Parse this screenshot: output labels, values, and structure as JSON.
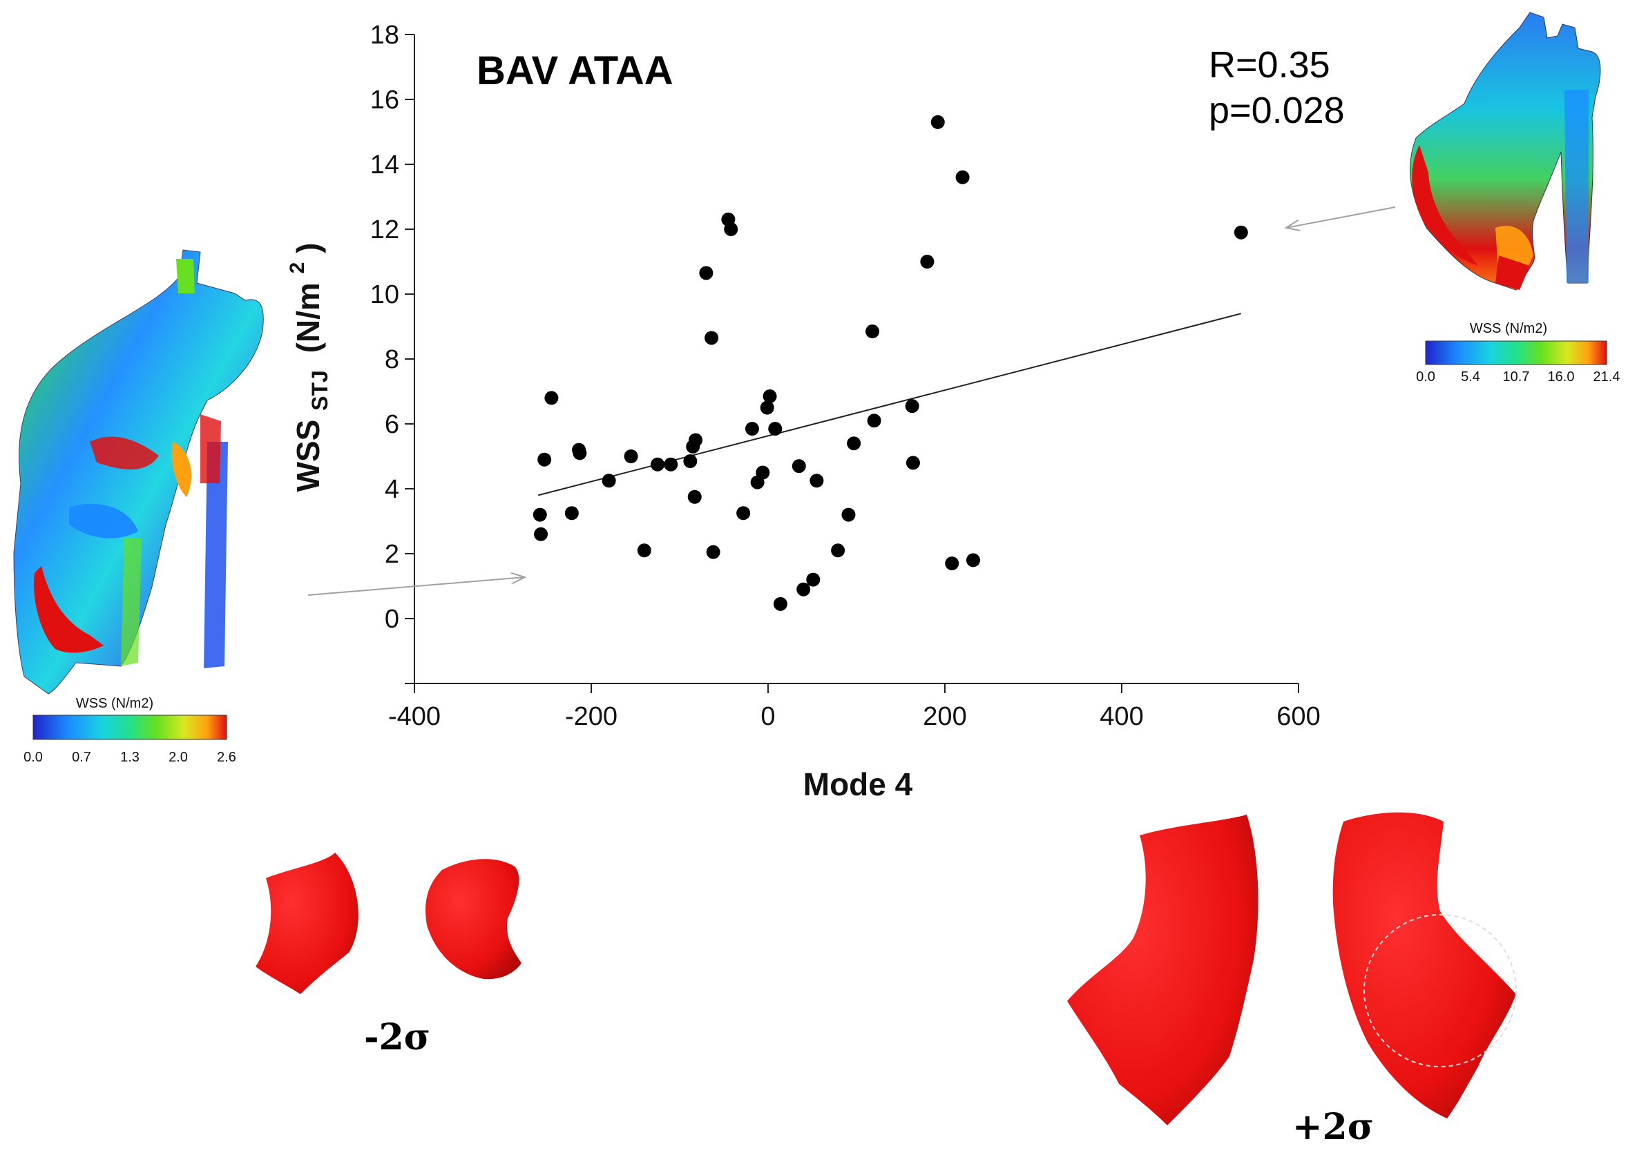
{
  "chart_data": {
    "type": "scatter",
    "title": "BAV ATAA",
    "xlabel": "Mode 4",
    "ylabel_main": "WSS",
    "ylabel_sub": "STJ",
    "ylabel_unit": "(N/m",
    "ylabel_sup": "2",
    "ylabel_close": ")",
    "xlim": [
      -400,
      600
    ],
    "ylim": [
      -2,
      18
    ],
    "x_ticks": [
      -400,
      -200,
      0,
      200,
      400,
      600
    ],
    "x_tick_labels": [
      "-400",
      "-200",
      "0",
      "200",
      "400",
      "600"
    ],
    "y_ticks": [
      0,
      2,
      4,
      6,
      8,
      10,
      12,
      14,
      16,
      18
    ],
    "y_tick_labels": [
      "0",
      "2",
      "4",
      "6",
      "8",
      "10",
      "12",
      "14",
      "16",
      "18"
    ],
    "stats": {
      "r": "R=0.35",
      "p": "p=0.028"
    },
    "regression": {
      "x": [
        -260,
        535
      ],
      "y": [
        3.8,
        9.4
      ]
    },
    "points": [
      {
        "x": -258,
        "y": 3.2
      },
      {
        "x": -257,
        "y": 2.6
      },
      {
        "x": -253,
        "y": 4.9
      },
      {
        "x": -245,
        "y": 6.8
      },
      {
        "x": -222,
        "y": 3.25
      },
      {
        "x": -214,
        "y": 5.2
      },
      {
        "x": -213,
        "y": 5.1
      },
      {
        "x": -180,
        "y": 4.25
      },
      {
        "x": -155,
        "y": 5.0
      },
      {
        "x": -140,
        "y": 2.1
      },
      {
        "x": -125,
        "y": 4.75
      },
      {
        "x": -110,
        "y": 4.75
      },
      {
        "x": -88,
        "y": 4.85
      },
      {
        "x": -85,
        "y": 5.3
      },
      {
        "x": -83,
        "y": 3.75
      },
      {
        "x": -82,
        "y": 5.5
      },
      {
        "x": -70,
        "y": 10.65
      },
      {
        "x": -64,
        "y": 8.65
      },
      {
        "x": -62,
        "y": 2.05
      },
      {
        "x": -45,
        "y": 12.3
      },
      {
        "x": -42,
        "y": 12.0
      },
      {
        "x": -28,
        "y": 3.25
      },
      {
        "x": -18,
        "y": 5.85
      },
      {
        "x": -12,
        "y": 4.2
      },
      {
        "x": -6,
        "y": 4.5
      },
      {
        "x": -1,
        "y": 6.5
      },
      {
        "x": 2,
        "y": 6.85
      },
      {
        "x": 8,
        "y": 5.85
      },
      {
        "x": 14,
        "y": 0.45
      },
      {
        "x": 35,
        "y": 4.7
      },
      {
        "x": 40,
        "y": 0.9
      },
      {
        "x": 51,
        "y": 1.2
      },
      {
        "x": 55,
        "y": 4.25
      },
      {
        "x": 79,
        "y": 2.1
      },
      {
        "x": 91,
        "y": 3.2
      },
      {
        "x": 97,
        "y": 5.4
      },
      {
        "x": 118,
        "y": 8.85
      },
      {
        "x": 120,
        "y": 6.1
      },
      {
        "x": 163,
        "y": 6.55
      },
      {
        "x": 164,
        "y": 4.8
      },
      {
        "x": 180,
        "y": 11.0
      },
      {
        "x": 192,
        "y": 15.3
      },
      {
        "x": 208,
        "y": 1.7
      },
      {
        "x": 220,
        "y": 13.6
      },
      {
        "x": 232,
        "y": 1.8
      },
      {
        "x": 535,
        "y": 11.9
      }
    ]
  },
  "colorbar_left": {
    "label": "WSS (N/m2)",
    "ticks": [
      "0.0",
      "0.7",
      "1.3",
      "2.0",
      "2.6"
    ]
  },
  "colorbar_right": {
    "label": "WSS (N/m2)",
    "ticks": [
      "0.0",
      "5.4",
      "10.7",
      "16.0",
      "21.4"
    ]
  },
  "colormap": [
    "#2222cc",
    "#1a8cff",
    "#19d4e0",
    "#22e08a",
    "#66e020",
    "#d8e820",
    "#ffa010",
    "#e01010"
  ],
  "shape_labels": {
    "minus": "-2σ",
    "plus": "+2σ"
  },
  "colors": {
    "shape_red": "#e81010",
    "points": "#000000",
    "arrow": "#a0a0a0"
  }
}
